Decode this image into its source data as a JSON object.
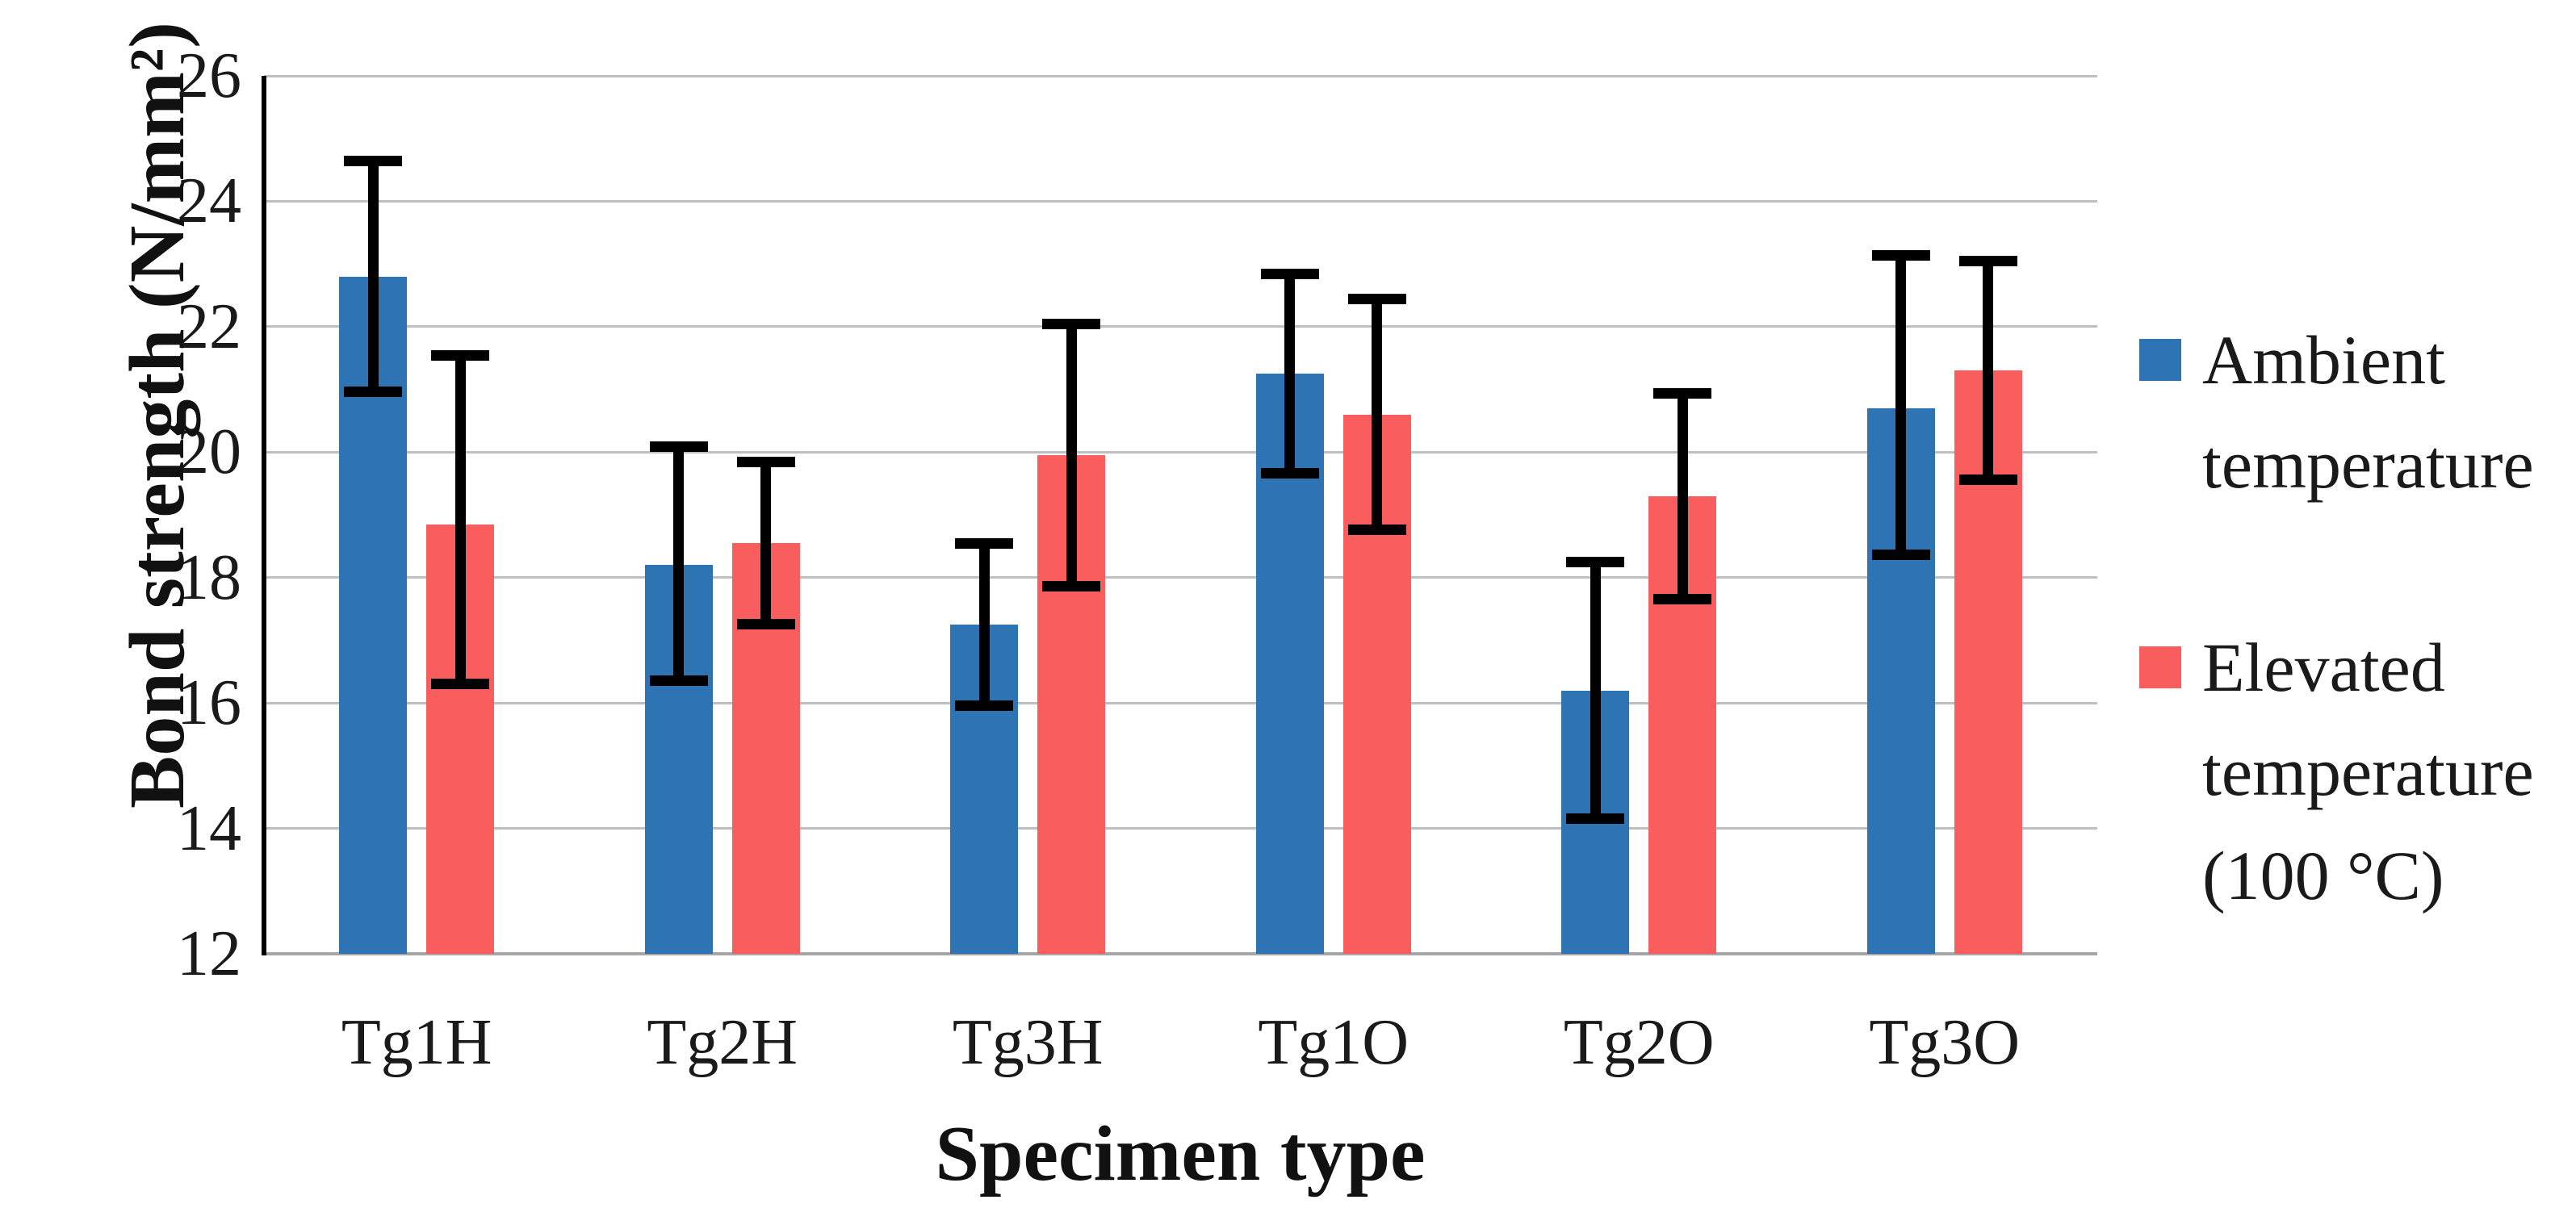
{
  "figure": {
    "background": "#ffffff",
    "text_color": "#1a1a1a",
    "gridline_color": "#bfbfbf",
    "axis_line_color": "#000000",
    "error_bar_color": "#000000"
  },
  "chart_data": {
    "type": "bar",
    "title": "",
    "xlabel": "Specimen type",
    "ylabel": "Bond strength (N/mm²)",
    "categories": [
      "Tg1H",
      "Tg2H",
      "Tg3H",
      "Tg1O",
      "Tg2O",
      "Tg3O"
    ],
    "series": [
      {
        "name": "Ambient temperature",
        "color": "#2E74B5",
        "values": [
          22.8,
          18.2,
          17.25,
          21.25,
          16.2,
          20.7
        ],
        "error_top": [
          24.7,
          20.15,
          18.6,
          22.9,
          18.3,
          23.2
        ],
        "error_bottom": [
          20.9,
          16.3,
          15.9,
          19.6,
          14.1,
          18.3
        ]
      },
      {
        "name": "Elevated temperature (100 °C)",
        "color": "#FA5D5D",
        "values": [
          18.85,
          18.55,
          19.95,
          20.6,
          19.3,
          21.3
        ],
        "error_top": [
          21.6,
          19.9,
          22.1,
          22.5,
          21.0,
          23.1
        ],
        "error_bottom": [
          16.25,
          17.2,
          17.8,
          18.7,
          17.6,
          19.5
        ]
      }
    ],
    "ylim": [
      12,
      26
    ],
    "yticks": [
      12,
      14,
      16,
      18,
      20,
      22,
      24,
      26
    ],
    "grid": "horizontal",
    "legend_position": "right",
    "legend_labels": [
      [
        "Ambient",
        "temperature"
      ],
      [
        "Elevated",
        "temperature",
        "(100 °C)"
      ]
    ]
  }
}
